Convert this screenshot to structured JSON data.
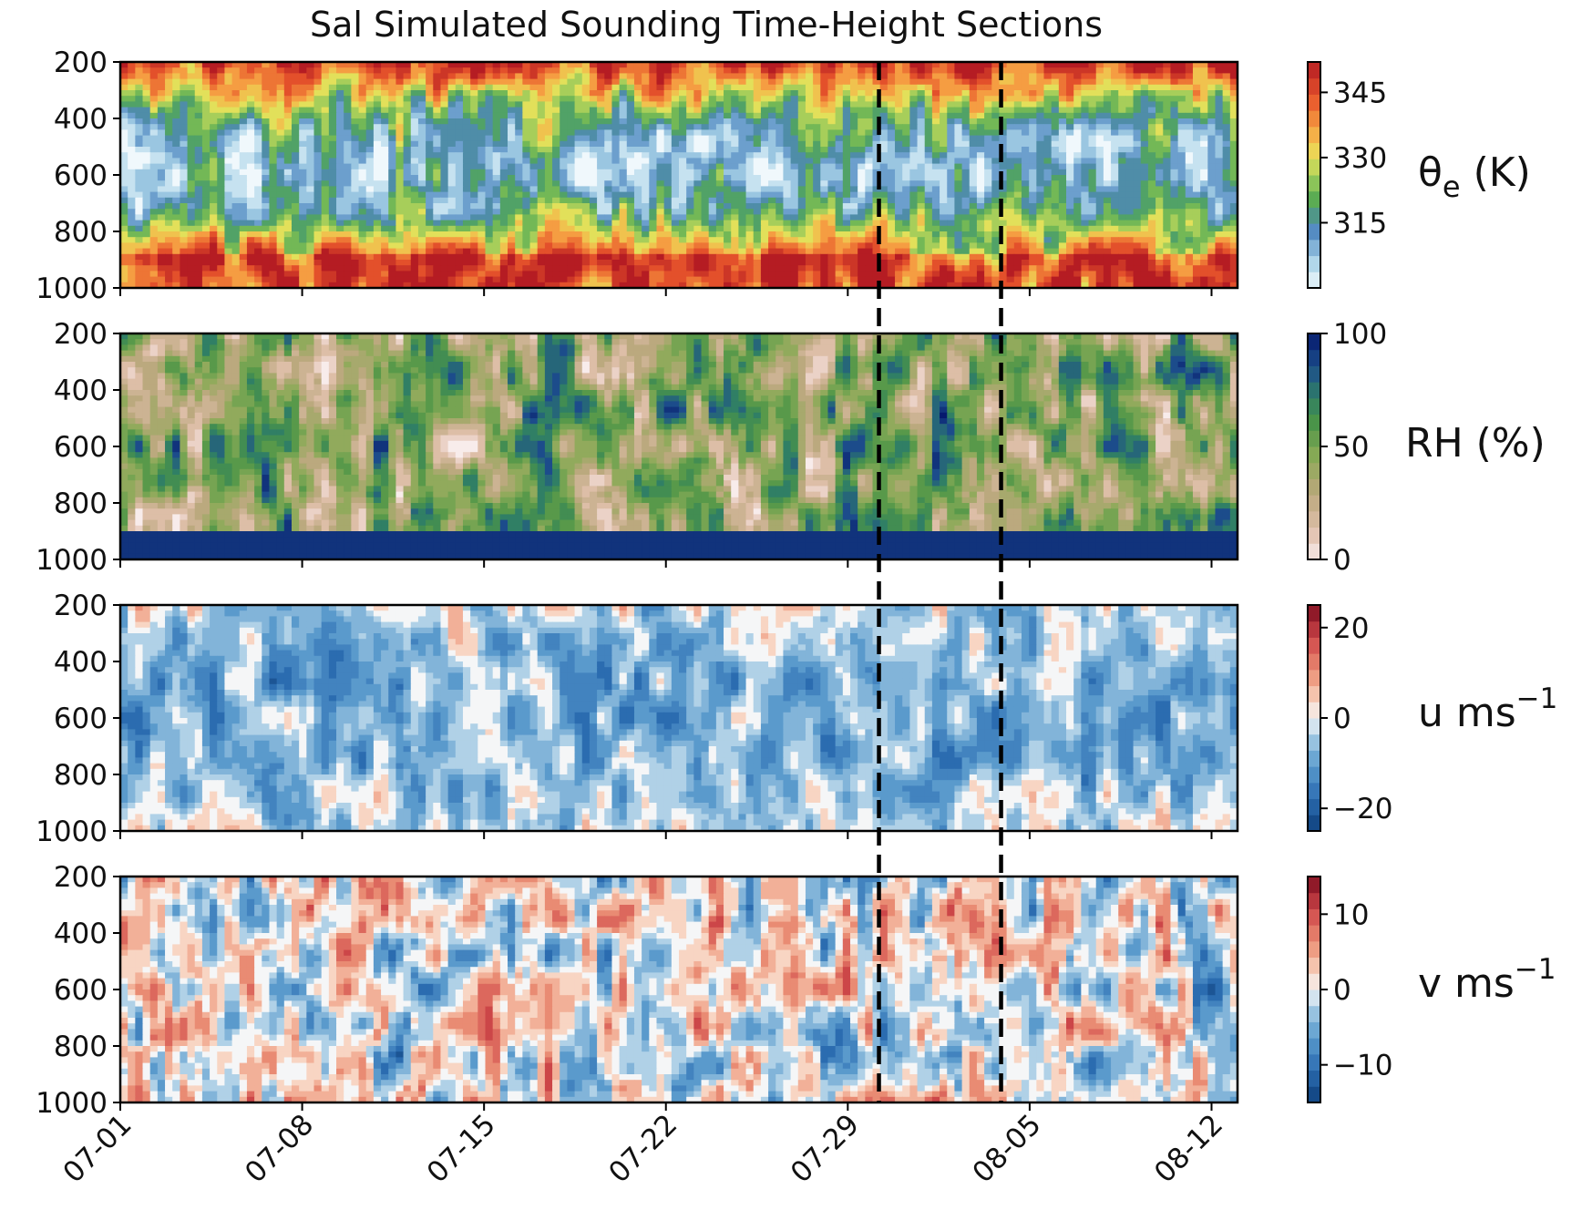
{
  "chart_data": {
    "type": "heatmap",
    "title": "Sal Simulated Sounding Time-Height Sections",
    "x_axis": {
      "type": "date",
      "range": [
        "07-01",
        "08-13"
      ],
      "tick_labels": [
        "07-01",
        "07-08",
        "07-15",
        "07-22",
        "07-29",
        "08-05",
        "08-12"
      ],
      "tick_days": [
        0,
        7,
        14,
        21,
        28,
        35,
        42
      ],
      "unlabeled_ticks_at_day": [
        0,
        7,
        14,
        21,
        28,
        35,
        42
      ]
    },
    "y_axis": {
      "inverted": true,
      "range": [
        1000,
        200
      ],
      "tick_labels": [
        "200",
        "400",
        "600",
        "800",
        "1000"
      ],
      "tick_values": [
        200,
        400,
        600,
        800,
        1000
      ]
    },
    "vertical_markers": {
      "style": "dashed",
      "color": "#000000",
      "day_offsets_from_07-01": [
        29.2,
        33.9
      ]
    },
    "panels": [
      {
        "id": "theta_e",
        "quantity_label": "θe (K)",
        "colormap": "RdYlBu_r",
        "range": [
          300,
          352
        ],
        "colorbar_ticks": [
          315,
          330,
          345
        ],
        "colorbar_tick_labels": [
          "315",
          "330",
          "345"
        ]
      },
      {
        "id": "rh",
        "quantity_label": "RH (%)",
        "colormap": "gist_earth_r",
        "range": [
          0,
          100
        ],
        "colorbar_ticks": [
          0,
          50,
          100
        ],
        "colorbar_tick_labels": [
          "0",
          "50",
          "100"
        ]
      },
      {
        "id": "u",
        "quantity_label": "u ms−1",
        "colormap": "RdBu_r",
        "range": [
          -25,
          25
        ],
        "colorbar_ticks": [
          -20,
          0,
          20
        ],
        "colorbar_tick_labels": [
          "−20",
          "0",
          "20"
        ]
      },
      {
        "id": "v",
        "quantity_label": "v ms−1",
        "colormap": "RdBu_r",
        "range": [
          -15,
          15
        ],
        "colorbar_ticks": [
          -10,
          0,
          10
        ],
        "colorbar_tick_labels": [
          "−10",
          "0",
          "10"
        ]
      }
    ]
  },
  "labels": {
    "title": "Sal Simulated Sounding Time-Height Sections",
    "theta_symbol": "θ",
    "theta_sub": "e",
    "theta_unit": " (K)",
    "rh": "RH (%)",
    "u_text": "u ms",
    "u_sup": "−1",
    "v_text": "v ms",
    "v_sup": "−1"
  }
}
